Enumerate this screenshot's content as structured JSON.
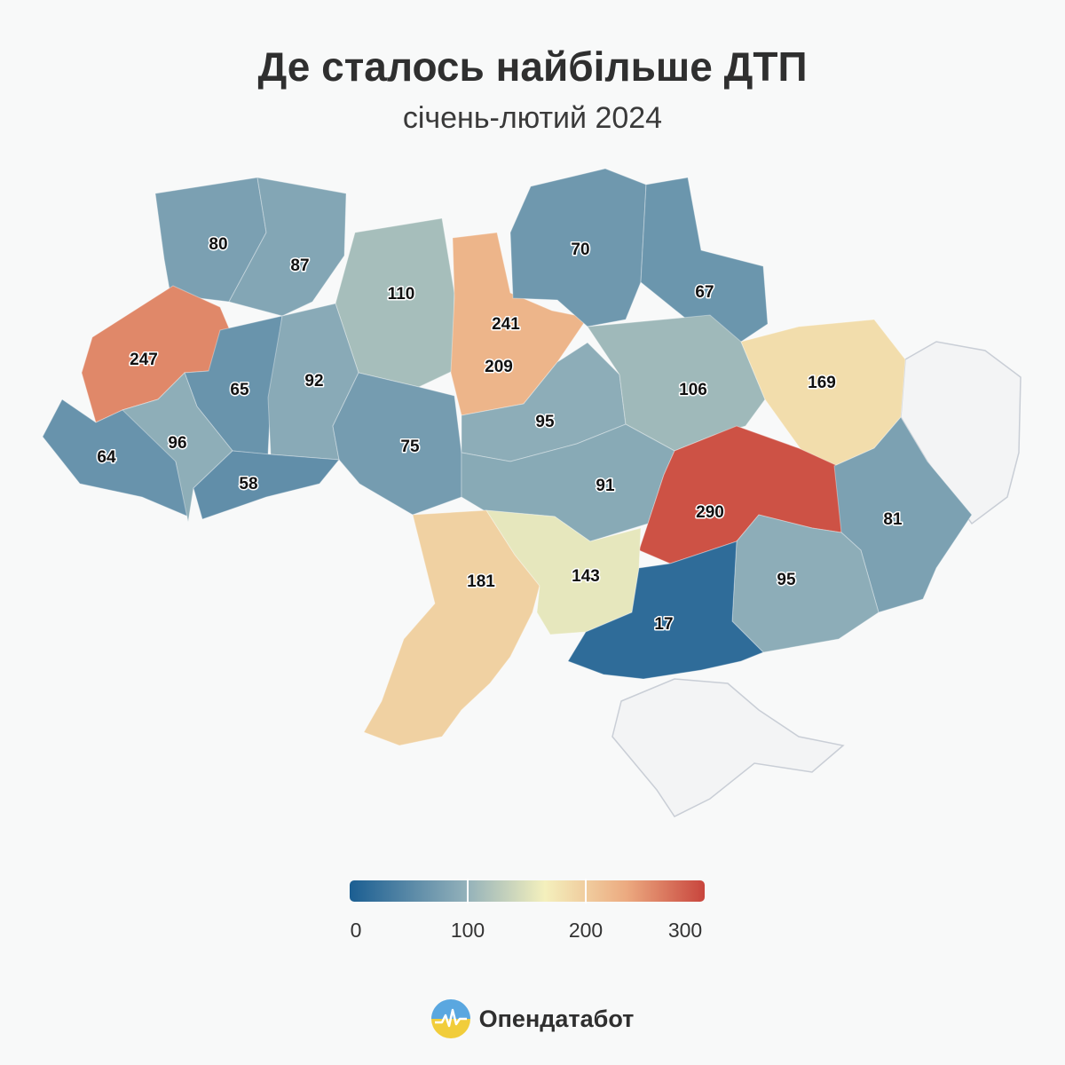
{
  "header": {
    "title": "Де сталось найбільше ДТП",
    "subtitle": "січень-лютий 2024"
  },
  "brand": {
    "name": "Опендатабот"
  },
  "colors": {
    "scale_low": "#1b5e92",
    "scale_mid_low": "#93b1ba",
    "scale_mid": "#f4f0bd",
    "scale_high": "#ecaa80",
    "scale_max": "#c8453d",
    "no_data": "#f3f4f5"
  },
  "chart_data": {
    "type": "choropleth",
    "regions": [
      {
        "value": 80
      },
      {
        "value": 87
      },
      {
        "value": 110
      },
      {
        "value": 241
      },
      {
        "value": 209
      },
      {
        "value": 70
      },
      {
        "value": 67
      },
      {
        "value": 247
      },
      {
        "value": 65
      },
      {
        "value": 92
      },
      {
        "value": 75
      },
      {
        "value": 95
      },
      {
        "value": 106
      },
      {
        "value": 169
      },
      {
        "value": 64
      },
      {
        "value": 96
      },
      {
        "value": 58
      },
      {
        "value": 91
      },
      {
        "value": 290
      },
      {
        "value": 81
      },
      {
        "value": 181
      },
      {
        "value": 143
      },
      {
        "value": 95
      },
      {
        "value": 17
      }
    ],
    "no_data_regions": 2,
    "legend": {
      "min": 0,
      "max": 300,
      "ticks": [
        "0",
        "100",
        "200",
        "300"
      ]
    }
  }
}
